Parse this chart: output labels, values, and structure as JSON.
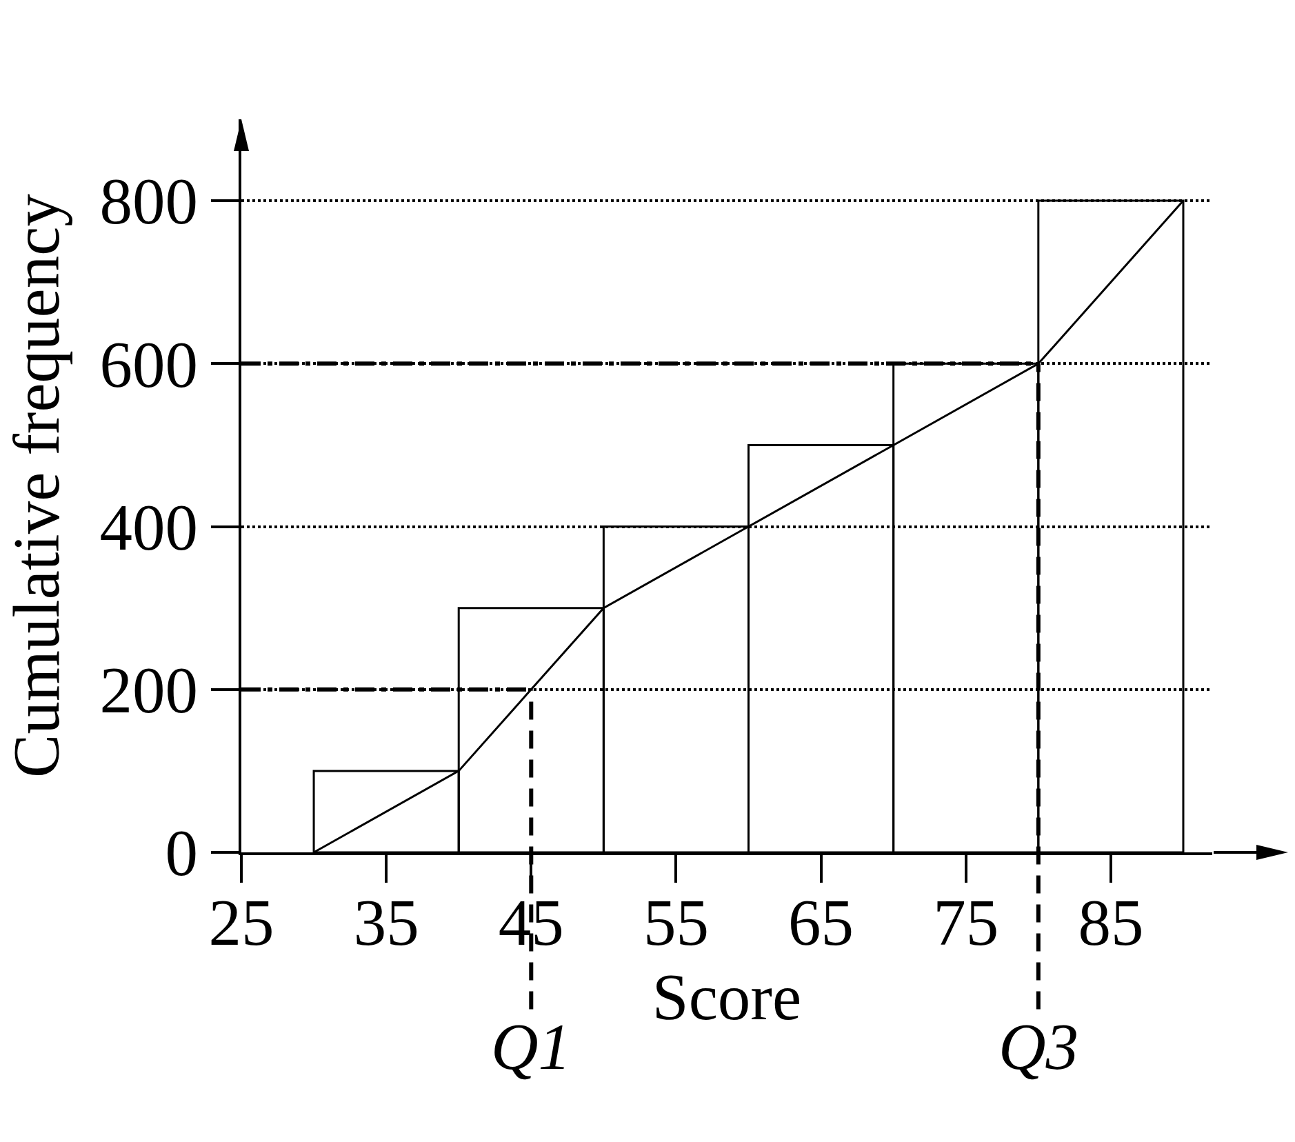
{
  "chart_data": {
    "type": "histogram",
    "xlabel": "Score",
    "ylabel": "Cumulative frequency",
    "series": [
      {
        "color": "#000000",
        "bins": [
          30,
          40,
          50,
          60,
          70,
          80,
          90
        ],
        "values": [
          100,
          300,
          400,
          500,
          600,
          800
        ]
      },
      {
        "type": "line",
        "color": "#000000",
        "x": [
          30,
          40,
          50,
          60,
          70,
          80,
          90
        ],
        "values": [
          0,
          100,
          300,
          400,
          500,
          600,
          800
        ]
      },
      {
        "type": "line",
        "color": "#000000",
        "line_style": "dashed",
        "x": [
          25,
          45
        ],
        "values": [
          200,
          200
        ]
      },
      {
        "type": "line",
        "color": "#000000",
        "line_style": "dashed",
        "x": [
          25,
          80
        ],
        "values": [
          600,
          600
        ]
      }
    ],
    "annotations": [
      {
        "text": "Q1",
        "x": 45,
        "y": 200
      },
      {
        "text": "Q3",
        "x": 80,
        "y": 600
      }
    ],
    "xlim": [
      25,
      92
    ],
    "ylim": [
      0,
      900
    ],
    "xticks": [
      25,
      35,
      45,
      55,
      65,
      75,
      85
    ],
    "yticks": [
      0,
      200,
      400,
      600,
      800
    ],
    "grid": "y"
  }
}
